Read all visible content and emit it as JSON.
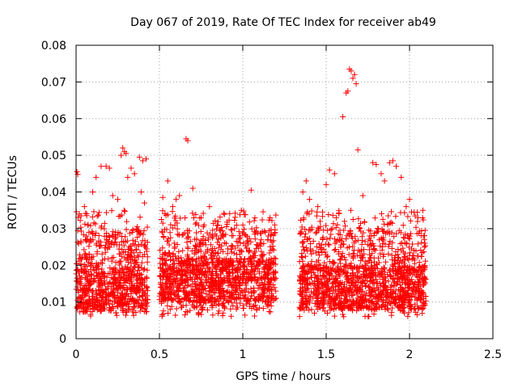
{
  "chart_data": {
    "type": "scatter",
    "title": "Day 067 of 2019, Rate Of TEC Index for receiver ab49",
    "xlabel": "GPS time / hours",
    "ylabel": "ROTI / TECUs",
    "xlim": [
      0,
      2.5
    ],
    "ylim": [
      0,
      0.08
    ],
    "xticks": [
      0,
      0.5,
      1,
      1.5,
      2,
      2.5
    ],
    "xtick_labels": [
      "0",
      "0.5",
      "1",
      "1.5",
      "2",
      "2.5"
    ],
    "yticks": [
      0,
      0.01,
      0.02,
      0.03,
      0.04,
      0.05,
      0.06,
      0.07,
      0.08
    ],
    "ytick_labels": [
      "0",
      "0.01",
      "0.02",
      "0.03",
      "0.04",
      "0.05",
      "0.06",
      "0.07",
      "0.08"
    ],
    "grid": true,
    "marker": "+",
    "color": "#ff0000",
    "segments": [
      {
        "start": 0.0,
        "end": 0.43,
        "base": 0.013
      },
      {
        "start": 0.5,
        "end": 1.2,
        "base": 0.016
      },
      {
        "start": 1.34,
        "end": 2.1,
        "base": 0.014
      }
    ],
    "points": [
      [
        0.005,
        0.0455
      ],
      [
        0.01,
        0.0448
      ],
      [
        0.02,
        0.034
      ],
      [
        0.03,
        0.0335
      ],
      [
        0.05,
        0.036
      ],
      [
        0.07,
        0.031
      ],
      [
        0.1,
        0.04
      ],
      [
        0.12,
        0.044
      ],
      [
        0.15,
        0.047
      ],
      [
        0.18,
        0.047
      ],
      [
        0.2,
        0.0465
      ],
      [
        0.22,
        0.039
      ],
      [
        0.25,
        0.038
      ],
      [
        0.27,
        0.05
      ],
      [
        0.28,
        0.052
      ],
      [
        0.29,
        0.051
      ],
      [
        0.3,
        0.0505
      ],
      [
        0.31,
        0.044
      ],
      [
        0.33,
        0.0465
      ],
      [
        0.35,
        0.045
      ],
      [
        0.38,
        0.0495
      ],
      [
        0.4,
        0.0485
      ],
      [
        0.42,
        0.049
      ],
      [
        0.39,
        0.04
      ],
      [
        0.41,
        0.037
      ],
      [
        0.52,
        0.0385
      ],
      [
        0.55,
        0.043
      ],
      [
        0.58,
        0.036
      ],
      [
        0.6,
        0.038
      ],
      [
        0.62,
        0.039
      ],
      [
        0.66,
        0.0545
      ],
      [
        0.67,
        0.054
      ],
      [
        0.7,
        0.041
      ],
      [
        0.75,
        0.033
      ],
      [
        0.8,
        0.036
      ],
      [
        0.85,
        0.031
      ],
      [
        0.95,
        0.03
      ],
      [
        1.0,
        0.031
      ],
      [
        1.05,
        0.0405
      ],
      [
        1.15,
        0.027
      ],
      [
        1.36,
        0.04
      ],
      [
        1.38,
        0.043
      ],
      [
        1.4,
        0.038
      ],
      [
        1.45,
        0.036
      ],
      [
        1.5,
        0.042
      ],
      [
        1.52,
        0.046
      ],
      [
        1.55,
        0.045
      ],
      [
        1.6,
        0.0605
      ],
      [
        1.62,
        0.067
      ],
      [
        1.63,
        0.0675
      ],
      [
        1.64,
        0.0735
      ],
      [
        1.65,
        0.073
      ],
      [
        1.66,
        0.071
      ],
      [
        1.67,
        0.072
      ],
      [
        1.68,
        0.0695
      ],
      [
        1.69,
        0.0515
      ],
      [
        1.72,
        0.039
      ],
      [
        1.78,
        0.048
      ],
      [
        1.8,
        0.0475
      ],
      [
        1.83,
        0.045
      ],
      [
        1.85,
        0.043
      ],
      [
        1.88,
        0.048
      ],
      [
        1.9,
        0.0485
      ],
      [
        1.92,
        0.047
      ],
      [
        1.95,
        0.044
      ],
      [
        1.98,
        0.036
      ],
      [
        2.0,
        0.038
      ],
      [
        2.05,
        0.033
      ],
      [
        2.08,
        0.035
      ]
    ]
  }
}
